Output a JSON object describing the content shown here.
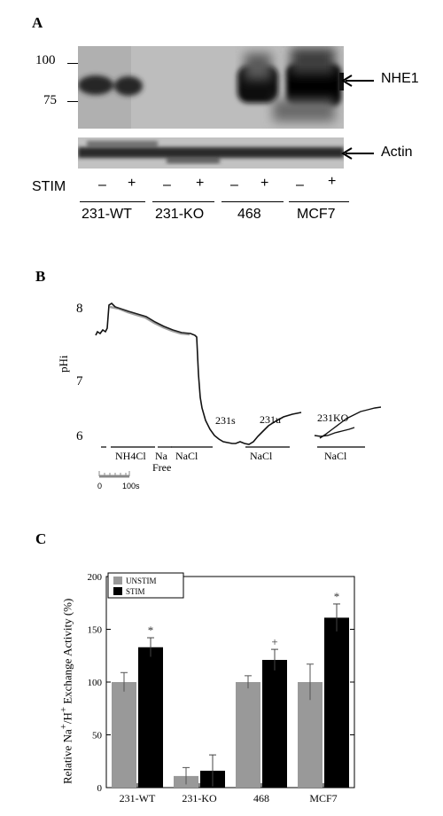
{
  "panel_a": {
    "letter": "A",
    "mw_markers": [
      "100",
      "75"
    ],
    "band_labels": [
      "NHE1",
      "Actin"
    ],
    "stim_label": "STIM",
    "stim_signs": [
      "–",
      "+",
      "–",
      "+",
      "–",
      "+",
      "–",
      "+"
    ],
    "cell_lines": [
      "231-WT",
      "231-KO",
      "468",
      "MCF7"
    ]
  },
  "panel_b": {
    "letter": "B",
    "y_axis_label": "pHi",
    "y_ticks": [
      "8",
      "7",
      "6"
    ],
    "trace_labels": [
      "231s",
      "231u",
      "231KO"
    ],
    "condition_labels": {
      "nh4cl": "NH4Cl",
      "na_free_line1": "Na",
      "na_free_line2": "Free",
      "nacl": "NaCl"
    },
    "scale_bar": {
      "start": "0",
      "end": "100s"
    }
  },
  "panel_c": {
    "letter": "C",
    "y_axis_label": "Relative Na+/H+ Exchange Activity (%)",
    "legend": [
      "UNSTIM",
      "STIM"
    ],
    "significance_marks": [
      "*",
      "+",
      "*"
    ],
    "colors": {
      "unstim": "#999999",
      "stim": "#000000"
    }
  },
  "chart_data": {
    "type": "bar",
    "categories": [
      "231-WT",
      "231-KO",
      "468",
      "MCF7"
    ],
    "series": [
      {
        "name": "UNSTIM",
        "values": [
          100,
          11,
          100,
          100
        ],
        "errors": [
          9,
          8,
          6,
          17
        ]
      },
      {
        "name": "STIM",
        "values": [
          133,
          16,
          121,
          161
        ],
        "errors": [
          9,
          15,
          10,
          13
        ]
      }
    ],
    "title": "",
    "xlabel": "",
    "ylabel": "Relative Na+/H+ Exchange Activity (%)",
    "ylim": [
      0,
      200
    ],
    "yticks": [
      0,
      50,
      100,
      150,
      200
    ],
    "legend_position": "top-left",
    "grid": false
  }
}
